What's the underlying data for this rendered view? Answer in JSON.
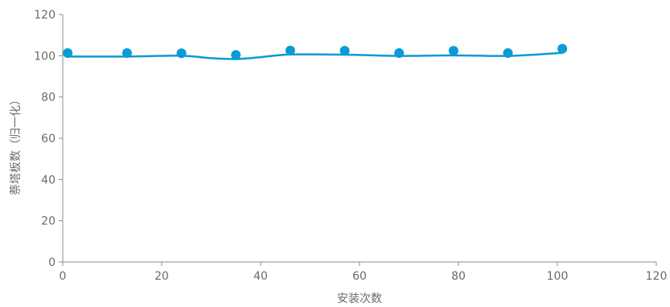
{
  "chart_data": {
    "type": "scatter",
    "xlabel": "安装次数",
    "ylabel": "萘塔板数（归一化）",
    "xlim": [
      0,
      120
    ],
    "ylim": [
      0,
      120
    ],
    "xticks": [
      0,
      20,
      40,
      60,
      80,
      100,
      120
    ],
    "yticks": [
      0,
      20,
      40,
      60,
      80,
      100,
      120
    ],
    "grid": false,
    "colors": {
      "accent": "#0a9ad8",
      "axis": "#8c8c8c",
      "text": "#6b6b6b"
    },
    "series": [
      {
        "kind": "points",
        "x": [
          1,
          13,
          24,
          35,
          46,
          57,
          68,
          79,
          90,
          101
        ],
        "y": [
          101.3,
          101.3,
          101.2,
          100.4,
          102.5,
          102.4,
          101.3,
          102.4,
          101.3,
          103.4
        ]
      },
      {
        "kind": "line",
        "x": [
          1,
          13,
          24,
          30,
          35,
          40,
          46,
          57,
          68,
          79,
          90,
          101
        ],
        "y": [
          99.6,
          99.6,
          100.0,
          98.8,
          98.4,
          99.3,
          100.6,
          100.5,
          99.9,
          100.2,
          99.9,
          101.4
        ]
      }
    ]
  }
}
